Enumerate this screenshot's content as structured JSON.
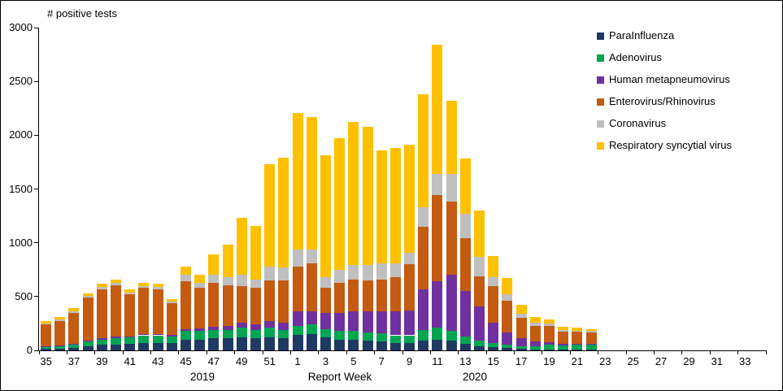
{
  "chart_data": {
    "type": "bar",
    "subtype": "stacked",
    "title": "# positive tests",
    "xlabel": "Report Week",
    "ylim": [
      0,
      3000
    ],
    "yticks": [
      0,
      500,
      1000,
      1500,
      2000,
      2500,
      3000
    ],
    "x_slots": 52,
    "x_tick_labels": [
      "35",
      "37",
      "39",
      "41",
      "43",
      "45",
      "47",
      "49",
      "51",
      "1",
      "3",
      "5",
      "7",
      "9",
      "11",
      "13",
      "15",
      "17",
      "19",
      "21",
      "23",
      "25",
      "27",
      "29",
      "31",
      "33"
    ],
    "year_labels": [
      "2019",
      "2020"
    ],
    "grid": false,
    "legend_position": "top-right",
    "categories": [
      "2019-35",
      "2019-36",
      "2019-37",
      "2019-38",
      "2019-39",
      "2019-40",
      "2019-41",
      "2019-42",
      "2019-43",
      "2019-44",
      "2019-45",
      "2019-46",
      "2019-47",
      "2019-48",
      "2019-49",
      "2019-50",
      "2019-51",
      "2019-52",
      "2020-01",
      "2020-02",
      "2020-03",
      "2020-04",
      "2020-05",
      "2020-06",
      "2020-07",
      "2020-08",
      "2020-09",
      "2020-10",
      "2020-11",
      "2020-12",
      "2020-13",
      "2020-14",
      "2020-15",
      "2020-16",
      "2020-17",
      "2020-18",
      "2020-19",
      "2020-20",
      "2020-21",
      "2020-22"
    ],
    "series": [
      {
        "name": "parainfluenza",
        "label": "ParaInfluenza",
        "color": "#1F3864",
        "values": [
          15,
          15,
          25,
          40,
          50,
          55,
          60,
          70,
          70,
          70,
          100,
          100,
          110,
          110,
          120,
          110,
          120,
          110,
          140,
          150,
          120,
          100,
          100,
          90,
          80,
          70,
          70,
          90,
          100,
          90,
          60,
          40,
          30,
          20,
          15,
          10,
          10,
          8,
          8,
          5
        ]
      },
      {
        "name": "adenovirus",
        "label": "Adenovirus",
        "color": "#00A550",
        "values": [
          20,
          25,
          30,
          40,
          50,
          60,
          60,
          70,
          70,
          60,
          80,
          80,
          80,
          80,
          90,
          80,
          90,
          80,
          90,
          90,
          80,
          80,
          80,
          80,
          80,
          70,
          70,
          100,
          110,
          90,
          70,
          50,
          40,
          30,
          25,
          30,
          40,
          40,
          45,
          50
        ]
      },
      {
        "name": "human-metapneumovirus",
        "label": "Human metapneumovirus",
        "color": "#7030A0",
        "values": [
          5,
          5,
          5,
          10,
          10,
          10,
          10,
          10,
          15,
          15,
          20,
          25,
          30,
          35,
          45,
          50,
          60,
          70,
          130,
          120,
          150,
          170,
          180,
          190,
          200,
          220,
          230,
          380,
          430,
          520,
          420,
          320,
          190,
          120,
          70,
          40,
          25,
          15,
          10,
          8
        ]
      },
      {
        "name": "enterovirus-rhinovirus",
        "label": "Enterovirus/Rhinovirus",
        "color": "#C55A11",
        "values": [
          200,
          230,
          290,
          400,
          460,
          480,
          390,
          430,
          410,
          290,
          440,
          380,
          410,
          380,
          340,
          340,
          380,
          390,
          420,
          450,
          230,
          280,
          300,
          290,
          300,
          320,
          430,
          580,
          800,
          680,
          490,
          280,
          340,
          290,
          190,
          150,
          150,
          110,
          110,
          105
        ]
      },
      {
        "name": "coronavirus",
        "label": "Coronavirus",
        "color": "#BFBFBF",
        "values": [
          10,
          15,
          15,
          15,
          20,
          25,
          20,
          20,
          25,
          20,
          60,
          45,
          70,
          75,
          105,
          80,
          130,
          120,
          160,
          130,
          100,
          120,
          130,
          140,
          150,
          130,
          110,
          180,
          200,
          260,
          230,
          180,
          80,
          60,
          40,
          30,
          25,
          17,
          12,
          12
        ]
      },
      {
        "name": "respiratory-syncytial-virus",
        "label": "Respiratory syncytial virus",
        "color": "#FFC000",
        "values": [
          20,
          20,
          25,
          25,
          30,
          30,
          30,
          30,
          30,
          25,
          80,
          70,
          190,
          300,
          530,
          500,
          950,
          1020,
          1270,
          1230,
          1130,
          1220,
          1330,
          1290,
          1050,
          1070,
          1000,
          1050,
          1200,
          680,
          510,
          430,
          200,
          150,
          80,
          50,
          40,
          30,
          25,
          20
        ]
      }
    ]
  }
}
